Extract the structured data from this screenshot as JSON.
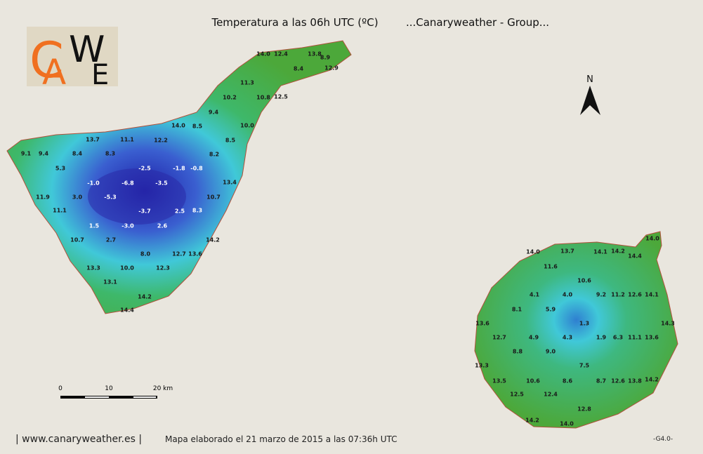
{
  "header": {
    "title": "Temperatura a las 06h UTC (ºC)",
    "subtitle": "...Canaryweather - Group..."
  },
  "logo": {
    "letters": [
      "C",
      "A",
      "W",
      "E"
    ]
  },
  "north": "N",
  "scale": {
    "labels": [
      "0",
      "10",
      "20 km"
    ]
  },
  "tenerife": {
    "labels": [
      "14.0",
      "12.4",
      "13.8",
      "8.9",
      "8.4",
      "12.9",
      "11.3",
      "10.2",
      "10.8",
      "12.5",
      "9.4",
      "14.0",
      "8.5",
      "10.0",
      "13.7",
      "11.1",
      "12.2",
      "8.5",
      "9.1",
      "9.4",
      "8.4",
      "8.3",
      "8.2",
      "5.3",
      "-2.5",
      "-1.8",
      "-0.8",
      "-1.0",
      "-6.8",
      "-3.5",
      "13.4",
      "11.9",
      "3.0",
      "-5.3",
      "10.7",
      "11.1",
      "-3.7",
      "2.5",
      "8.3",
      "1.5",
      "-3.0",
      "2.6",
      "10.7",
      "2.7",
      "14.2",
      "8.0",
      "12.7",
      "13.6",
      "13.3",
      "10.0",
      "12.3",
      "13.1",
      "14.2",
      "14.4"
    ]
  },
  "gran_canaria": {
    "labels": [
      "14.0",
      "14.0",
      "13.7",
      "14.1",
      "14.2",
      "14.4",
      "11.6",
      "10.6",
      "4.1",
      "4.0",
      "9.2",
      "11.2",
      "12.6",
      "14.1",
      "8.1",
      "5.9",
      "13.6",
      "1.3",
      "14.3",
      "12.7",
      "4.9",
      "4.3",
      "1.9",
      "6.3",
      "11.1",
      "13.6",
      "8.8",
      "9.0",
      "13.3",
      "7.5",
      "13.5",
      "10.6",
      "8.6",
      "8.7",
      "12.6",
      "13.8",
      "14.2",
      "12.5",
      "12.4",
      "12.8",
      "14.2",
      "14.0"
    ]
  },
  "footer": {
    "site": "| www.canaryweather.es |",
    "note": "Mapa elaborado el 21 marzo de 2015 a las 07:36h UTC",
    "version": "-G4.0-"
  }
}
